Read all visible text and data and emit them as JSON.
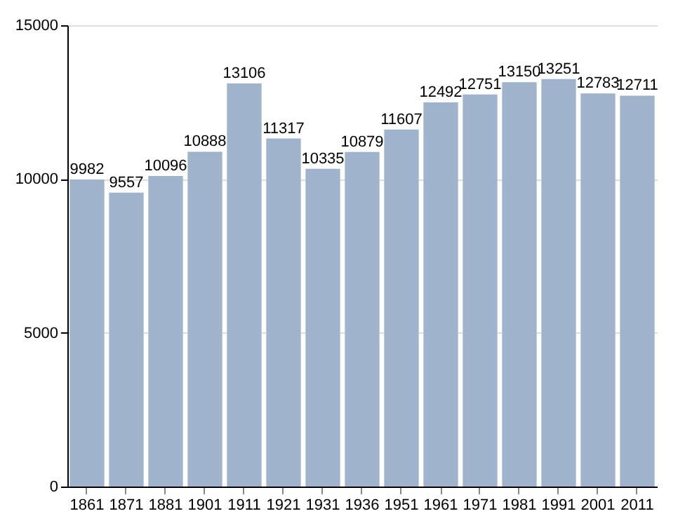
{
  "chart_data": {
    "type": "bar",
    "categories": [
      "1861",
      "1871",
      "1881",
      "1901",
      "1911",
      "1921",
      "1931",
      "1936",
      "1951",
      "1961",
      "1971",
      "1981",
      "1991",
      "2001",
      "2011"
    ],
    "values": [
      9982,
      9557,
      10096,
      10888,
      13106,
      11317,
      10335,
      10879,
      11607,
      12492,
      12751,
      13150,
      13251,
      12783,
      12711
    ],
    "color": "#9fb3cc",
    "ylim": [
      0,
      15000
    ],
    "yticks": [
      0,
      5000,
      10000,
      15000
    ],
    "grid": "y",
    "data_labels": true
  }
}
